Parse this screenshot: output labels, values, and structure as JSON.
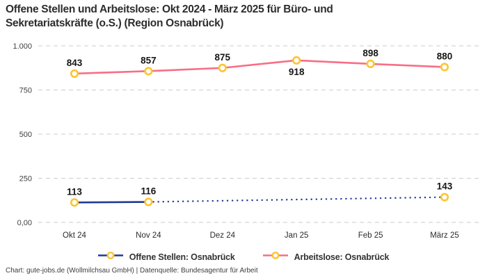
{
  "title": "Offene Stellen und Arbeitslose: Okt 2024 - März 2025 für Büro- und Sekretariatskräfte (o.S.) (Region Osnabrück)",
  "footer": {
    "text": "Chart: gute-jobs.de (Wollmilchsau GmbH) | Datenquelle: Bundesagentur für Arbeit"
  },
  "colors": {
    "background": "#ffffff",
    "grid": "#cbcbcb",
    "title_text": "#2d2d2d",
    "axis_text": "#3f3f3f",
    "data_label_text": "#161616",
    "marker_ring": "#fdc42f",
    "marker_fill": "#ffffff",
    "series_open_positions": "#203a90",
    "series_unemployed": "#f76e85"
  },
  "chart_data": {
    "type": "line",
    "title": "Offene Stellen und Arbeitslose: Okt 2024 - März 2025 für Büro- und Sekretariatskräfte (o.S.) (Region Osnabrück)",
    "categories": [
      "Okt 24",
      "Nov 24",
      "Dez 24",
      "Jan 25",
      "Feb 25",
      "März 25"
    ],
    "series": [
      {
        "name": "Offene Stellen: Osnabrück",
        "color": "#203a90",
        "values": [
          113,
          116,
          null,
          null,
          null,
          143
        ],
        "gap_style": "dotted",
        "label_positions": [
          "above",
          "above",
          null,
          null,
          null,
          "above"
        ]
      },
      {
        "name": "Arbeitslose: Osnabrück",
        "color": "#f76e85",
        "values": [
          843,
          857,
          875,
          918,
          898,
          880
        ],
        "gap_style": "none",
        "label_positions": [
          "above",
          "above",
          "above",
          "below",
          "above",
          "above"
        ]
      }
    ],
    "marker": {
      "fill": "#ffffff",
      "ring": "#fdc42f"
    },
    "ylim": [
      0,
      1000
    ],
    "yticks": [
      {
        "v": 0,
        "label": "0,00"
      },
      {
        "v": 250,
        "label": "250"
      },
      {
        "v": 500,
        "label": "500"
      },
      {
        "v": 750,
        "label": "750"
      },
      {
        "v": 1000,
        "label": "1.000"
      }
    ],
    "xlabel": "",
    "ylabel": "",
    "grid": "dashed-horizontal",
    "legend_position": "bottom"
  }
}
